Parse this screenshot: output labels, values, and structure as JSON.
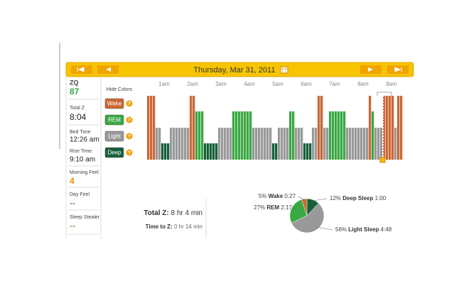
{
  "header": {
    "title": "Thursday, Mar 31, 2011"
  },
  "sidebar": [
    {
      "label": "ZQ",
      "value": 87
    },
    {
      "label": "Total Z",
      "value": "8:04"
    },
    {
      "label": "Bed Time",
      "value": "12:26 am"
    },
    {
      "label": "Rise Time",
      "value": "9:10 am"
    },
    {
      "label": "Morning Feel",
      "value": 4
    },
    {
      "label": "Day Feel",
      "value": "--"
    },
    {
      "label": "Sleep Stealer",
      "value": "--"
    }
  ],
  "legend": {
    "toggle": "Hide Colors",
    "help": "?",
    "stages": [
      "Wake",
      "REM",
      "Light",
      "Deep"
    ],
    "colors": [
      "#cc6633",
      "#3aa843",
      "#999999",
      "#16603a"
    ]
  },
  "hypnogram": {
    "hours": [
      "1am",
      "2am",
      "3am",
      "4am",
      "5am",
      "6am",
      "7am",
      "8am",
      "9am"
    ],
    "stages": [
      0,
      0,
      0,
      2,
      2,
      3,
      3,
      3,
      2,
      2,
      2,
      2,
      2,
      2,
      2,
      0,
      0,
      1,
      1,
      1,
      3,
      3,
      3,
      3,
      3,
      2,
      2,
      2,
      2,
      2,
      1,
      1,
      1,
      1,
      1,
      1,
      1,
      2,
      2,
      2,
      2,
      2,
      2,
      2,
      3,
      3,
      2,
      2,
      2,
      2,
      1,
      1,
      2,
      2,
      2,
      3,
      3,
      3,
      2,
      2,
      0,
      0,
      2,
      2,
      1,
      1,
      1,
      1,
      1,
      1,
      2,
      2,
      2,
      2,
      2,
      2,
      2,
      2,
      0,
      1,
      2,
      2,
      2,
      0,
      0,
      0,
      0,
      2,
      0,
      0
    ]
  },
  "totals": {
    "total_label": "Total Z:",
    "total_value": "8 hr 4 min",
    "ttz_label": "Time to Z:",
    "ttz_value": "0 hr 14 min"
  },
  "pie": {
    "slices": [
      {
        "name": "Deep Sleep",
        "percent": 12,
        "percent_label": "12%",
        "duration": "1:00",
        "color": "#16603a"
      },
      {
        "name": "Light Sleep",
        "percent": 56,
        "percent_label": "56%",
        "duration": "4:48",
        "color": "#999999"
      },
      {
        "name": "REM",
        "percent": 27,
        "percent_label": "27%",
        "duration": "2:17",
        "color": "#3aa843"
      },
      {
        "name": "Wake",
        "percent": 5,
        "percent_label": "5%",
        "duration": "0:27",
        "color": "#cc6633"
      }
    ]
  }
}
